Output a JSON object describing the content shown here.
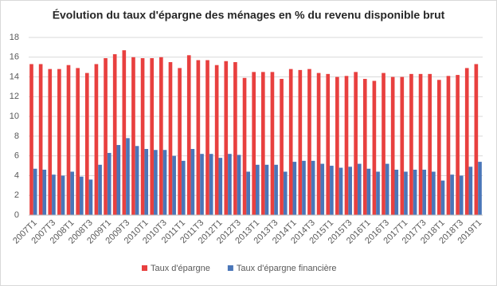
{
  "chart_data": {
    "type": "bar",
    "title": "Évolution du taux d'épargne des ménages en % du revenu disponible brut",
    "categories": [
      "2007T1",
      null,
      "2007T3",
      null,
      "2008T1",
      null,
      "2008T3",
      null,
      "2009T1",
      null,
      "2009T3",
      null,
      "2010T1",
      null,
      "2010T3",
      null,
      "2011T1",
      null,
      "2011T3",
      null,
      "2012T1",
      null,
      "2012T3",
      null,
      "2013T1",
      null,
      "2013T3",
      null,
      "2014T1",
      null,
      "2014T3",
      null,
      "2015T1",
      null,
      "2015T3",
      null,
      "2016T1",
      null,
      "2016T3",
      null,
      "2017T1",
      null,
      "2017T3",
      null,
      "2018T1",
      null,
      "2018T3",
      null,
      "2019T1"
    ],
    "series": [
      {
        "name": "Taux d'épargne",
        "color": "#e8403f",
        "values": [
          15.3,
          15.3,
          14.8,
          14.8,
          15.2,
          14.9,
          14.4,
          15.3,
          15.9,
          16.3,
          16.7,
          16.0,
          15.9,
          15.9,
          16.0,
          15.5,
          14.9,
          16.2,
          15.7,
          15.7,
          15.2,
          15.6,
          15.5,
          13.9,
          14.5,
          14.5,
          14.5,
          13.8,
          14.8,
          14.7,
          14.8,
          14.4,
          14.3,
          14.0,
          14.1,
          14.5,
          13.8,
          13.6,
          14.4,
          14.0,
          14.0,
          14.3,
          14.3,
          14.3,
          13.7,
          14.1,
          14.2,
          14.9,
          15.3
        ]
      },
      {
        "name": "Taux d'épargne financière",
        "color": "#4a76b8",
        "values": [
          4.7,
          4.6,
          4.1,
          4.0,
          4.4,
          3.9,
          3.6,
          5.1,
          6.3,
          7.1,
          7.8,
          7.0,
          6.7,
          6.6,
          6.6,
          6.0,
          5.5,
          6.7,
          6.2,
          6.2,
          5.8,
          6.2,
          6.1,
          4.4,
          5.1,
          5.1,
          5.1,
          4.4,
          5.4,
          5.5,
          5.5,
          5.2,
          5.0,
          4.8,
          4.9,
          5.2,
          4.7,
          4.4,
          5.2,
          4.6,
          4.4,
          4.6,
          4.6,
          4.4,
          3.5,
          4.1,
          4.0,
          4.9,
          5.4
        ]
      }
    ],
    "ylim": [
      0,
      18
    ],
    "yticks": [
      0,
      2,
      4,
      6,
      8,
      10,
      12,
      14,
      16,
      18
    ],
    "grid": true,
    "legend": "bottom"
  }
}
